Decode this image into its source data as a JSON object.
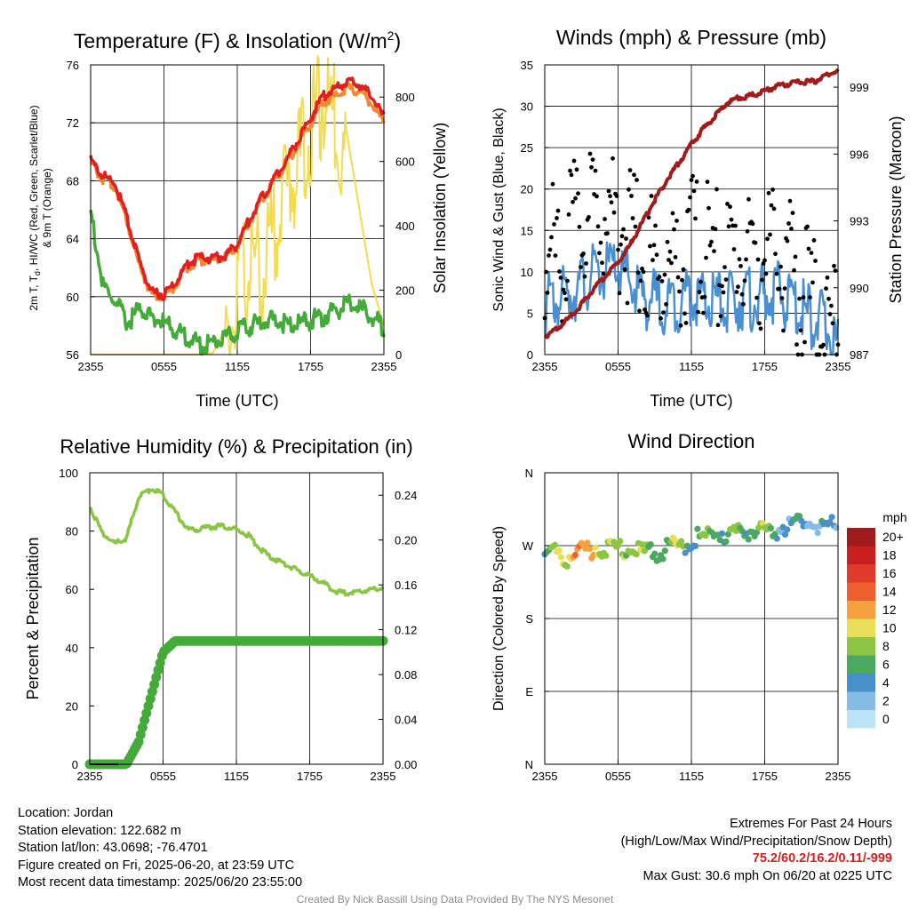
{
  "xticks": [
    "2355",
    "0555",
    "1155",
    "1755",
    "2355"
  ],
  "panels": {
    "temp": {
      "title": "Temperature (F) & Insolation (W/m",
      "title_sup": "2",
      "title_end": ")",
      "xlabel": "Time (UTC)",
      "ylabel_line1": "2m T, T",
      "ylabel_sub": "d",
      "ylabel_line1b": ", HI/WC (Red, Green, Scarlet/Blue)",
      "ylabel_line2": "& 9m T (Orange)",
      "y2label": "Solar Insolation (Yellow)",
      "yticks": [
        "56",
        "60",
        "64",
        "68",
        "72",
        "76"
      ],
      "y2ticks": [
        "0",
        "200",
        "400",
        "600",
        "800"
      ]
    },
    "wind": {
      "title": "Winds (mph) & Pressure (mb)",
      "xlabel": "Time (UTC)",
      "ylabel": "Sonic Wind & Gust (Blue, Black)",
      "y2label": "Station Pressure (Maroon)",
      "yticks": [
        "0",
        "5",
        "10",
        "15",
        "20",
        "25",
        "30",
        "35"
      ],
      "y2ticks": [
        "987",
        "990",
        "993",
        "996",
        "999"
      ]
    },
    "rh": {
      "title": "Relative Humidity (%) & Precipitation (in)",
      "ylabel": "Percent & Precipitation",
      "yticks": [
        "0",
        "20",
        "40",
        "60",
        "80",
        "100"
      ],
      "y2ticks": [
        "0.00",
        "0.04",
        "0.08",
        "0.12",
        "0.16",
        "0.20",
        "0.24"
      ]
    },
    "dir": {
      "title": "Wind Direction",
      "ylabel": "Direction (Colored By Speed)",
      "yticks": [
        "N",
        "E",
        "S",
        "W",
        "N"
      ],
      "legend_title": "mph",
      "legend_labels": [
        "20+",
        "18",
        "16",
        "14",
        "12",
        "10",
        "8",
        "6",
        "4",
        "2",
        "0"
      ],
      "legend_colors": [
        "#a01c1c",
        "#c8201e",
        "#e03a2c",
        "#ee6030",
        "#f6a040",
        "#e8de58",
        "#8cc444",
        "#4aa860",
        "#4a90c8",
        "#84bce6",
        "#bce4f6"
      ]
    }
  },
  "colors": {
    "temp": "#e02020",
    "temp9m": "#f08a30",
    "dew": "#44aa3a",
    "solar": "#f4dc50",
    "wind": "#4a90d0",
    "gust": "#000000",
    "pressure": "#a01c1c",
    "rh": "#8cc444",
    "precip": "#44aa3a"
  },
  "chart_data": [
    {
      "type": "line",
      "title": "Temperature (F) & Insolation (W/m2)",
      "xlabel": "Time (UTC)",
      "ylabel": "2m T, Td, HI/WC (Red, Green, Scarlet/Blue) & 9m T (Orange)",
      "y2label": "Solar Insolation (Yellow)",
      "ylim": [
        56,
        76
      ],
      "y2lim": [
        0,
        900
      ],
      "x": [
        0,
        1,
        2,
        3,
        4,
        5,
        6,
        7,
        8,
        9,
        10,
        11,
        12,
        13,
        14,
        15,
        16,
        17,
        18,
        19,
        20,
        21,
        22,
        23,
        24
      ],
      "series": [
        {
          "name": "2m T",
          "axis": "left",
          "values": [
            69.6,
            68.5,
            68.0,
            65.5,
            62.5,
            60.5,
            60.3,
            61.2,
            62.5,
            62.9,
            62.8,
            63.0,
            63.8,
            65.5,
            67.0,
            68.3,
            69.6,
            71.0,
            72.5,
            74.0,
            74.5,
            75.0,
            74.8,
            74.0,
            72.5
          ]
        },
        {
          "name": "9m T",
          "axis": "left",
          "values": [
            69.4,
            68.3,
            67.8,
            65.3,
            62.3,
            60.3,
            60.2,
            61.0,
            62.3,
            62.7,
            62.7,
            62.9,
            63.7,
            65.3,
            66.8,
            68.1,
            69.4,
            70.7,
            72.1,
            73.6,
            74.0,
            74.6,
            74.3,
            73.5,
            72.2
          ]
        },
        {
          "name": "Td",
          "axis": "left",
          "values": [
            66.3,
            61.0,
            60.0,
            58.5,
            59.5,
            59.0,
            58.5,
            58.0,
            57.5,
            57.0,
            57.2,
            57.6,
            57.9,
            58.3,
            58.6,
            58.8,
            58.5,
            58.4,
            58.7,
            59.0,
            59.3,
            59.8,
            59.6,
            59.0,
            58.2
          ]
        },
        {
          "name": "Solar",
          "axis": "right",
          "values": [
            0,
            0,
            0,
            0,
            0,
            0,
            0,
            0,
            0,
            0,
            5,
            80,
            260,
            380,
            330,
            480,
            600,
            690,
            780,
            880,
            820,
            680,
            450,
            220,
            90
          ]
        }
      ]
    },
    {
      "type": "line",
      "title": "Winds (mph) & Pressure (mb)",
      "xlabel": "Time (UTC)",
      "ylabel": "Sonic Wind & Gust (Blue, Black)",
      "y2label": "Station Pressure (Maroon)",
      "ylim": [
        0,
        35
      ],
      "y2lim": [
        987,
        1000
      ],
      "x": [
        0,
        1,
        2,
        3,
        4,
        5,
        6,
        7,
        8,
        9,
        10,
        11,
        12,
        13,
        14,
        15,
        16,
        17,
        18,
        19,
        20,
        21,
        22,
        23,
        24
      ],
      "series": [
        {
          "name": "Wind",
          "axis": "left",
          "values": [
            8.0,
            8.5,
            9.5,
            10.5,
            11.5,
            12.0,
            12.5,
            10.5,
            9.0,
            8.5,
            8.0,
            8.5,
            9.5,
            8.0,
            8.5,
            8.0,
            9.0,
            8.5,
            9.0,
            9.5,
            8.5,
            7.5,
            6.5,
            5.5,
            3.0
          ]
        },
        {
          "name": "Gust",
          "axis": "left",
          "values": [
            16.0,
            16.5,
            18.5,
            20.5,
            21.5,
            22.0,
            21.0,
            19.0,
            17.0,
            15.5,
            15.0,
            15.5,
            17.5,
            17.0,
            16.5,
            16.0,
            17.5,
            16.0,
            16.5,
            16.0,
            14.5,
            12.0,
            10.0,
            8.0,
            6.5
          ]
        },
        {
          "name": "Pressure",
          "axis": "right",
          "values": [
            987.9,
            988.2,
            988.7,
            989.3,
            990.0,
            990.6,
            991.2,
            992.0,
            993.0,
            994.0,
            994.9,
            995.7,
            996.5,
            997.2,
            997.8,
            998.4,
            998.6,
            998.7,
            998.9,
            999.1,
            999.2,
            999.3,
            999.3,
            999.6,
            999.8
          ]
        }
      ]
    },
    {
      "type": "line",
      "title": "Relative Humidity (%) & Precipitation (in)",
      "ylabel": "Percent & Precipitation",
      "ylim": [
        0,
        100
      ],
      "y2lim": [
        0,
        0.26
      ],
      "x": [
        0,
        1,
        2,
        3,
        4,
        5,
        6,
        7,
        8,
        9,
        10,
        11,
        12,
        13,
        14,
        15,
        16,
        17,
        18,
        19,
        20,
        21,
        22,
        23,
        24
      ],
      "series": [
        {
          "name": "RH",
          "axis": "left",
          "values": [
            89,
            80,
            76,
            78,
            92,
            95,
            93,
            87,
            81,
            81,
            82,
            82,
            81,
            79,
            74,
            71,
            69,
            67,
            65,
            63,
            60,
            59,
            60,
            60,
            61
          ]
        },
        {
          "name": "Precip",
          "axis": "right",
          "values": [
            0.0,
            0.0,
            0.0,
            0.0,
            0.02,
            0.06,
            0.1,
            0.11,
            0.11,
            0.11,
            0.11,
            0.11,
            0.11,
            0.11,
            0.11,
            0.11,
            0.11,
            0.11,
            0.11,
            0.11,
            0.11,
            0.11,
            0.11,
            0.11,
            0.11
          ]
        }
      ]
    },
    {
      "type": "scatter",
      "title": "Wind Direction",
      "ylabel": "Direction (Colored By Speed)",
      "ylim": [
        0,
        360
      ],
      "x": [
        0.0,
        0.5,
        1.0,
        1.5,
        2.0,
        2.5,
        3.0,
        3.5,
        4.0,
        4.5,
        5.0,
        5.5,
        6.0,
        6.5,
        7.0,
        7.5,
        8.0,
        8.5,
        9.0,
        9.5,
        10.0,
        10.5,
        11.0,
        11.5,
        12.0,
        12.5,
        13.0,
        13.5,
        14.0,
        14.5,
        15.0,
        15.5,
        16.0,
        16.5,
        17.0,
        17.5,
        18.0,
        18.5,
        19.0,
        19.5,
        20.0,
        20.5,
        21.0,
        21.5,
        22.0,
        22.5,
        23.0,
        23.5
      ],
      "direction": [
        268,
        265,
        262,
        258,
        264,
        266,
        270,
        272,
        274,
        271,
        270,
        272,
        271,
        270,
        269,
        268,
        268,
        271,
        269,
        270,
        272,
        274,
        276,
        279,
        282,
        285,
        287,
        288,
        290,
        291,
        289,
        292,
        293,
        294,
        295,
        292,
        290,
        294,
        296,
        300,
        302,
        305,
        306,
        304,
        303,
        300,
        302,
        301
      ],
      "speed": [
        7,
        9,
        11,
        10,
        13,
        15,
        12,
        11,
        12,
        11,
        10,
        9,
        8,
        9,
        10,
        9,
        8,
        6,
        7,
        8,
        9,
        10,
        8,
        7,
        6,
        8,
        9,
        7,
        8,
        7,
        9,
        8,
        6,
        7,
        8,
        9,
        7,
        6,
        5,
        6,
        4,
        5,
        4,
        3,
        4,
        5,
        4,
        3
      ]
    }
  ],
  "info": {
    "location": "Location: Jordan",
    "elevation": "Station elevation: 122.682 m",
    "latlon": "Station lat/lon: 43.0698; -76.4701",
    "created": "Figure created on Fri, 2025-06-20, at 23:59 UTC",
    "recent": "Most recent data timestamp: 2025/06/20 23:55:00"
  },
  "extremes": {
    "title": "Extremes For Past 24 Hours",
    "subtitle": "(High/Low/Max Wind/Precipitation/Snow Depth)",
    "values": "75.2/60.2/16.2/0.11/-999",
    "gust": "Max Gust: 30.6 mph On 06/20 at 0225 UTC"
  },
  "credit": "Created By Nick Bassill Using Data Provided By The NYS Mesonet"
}
